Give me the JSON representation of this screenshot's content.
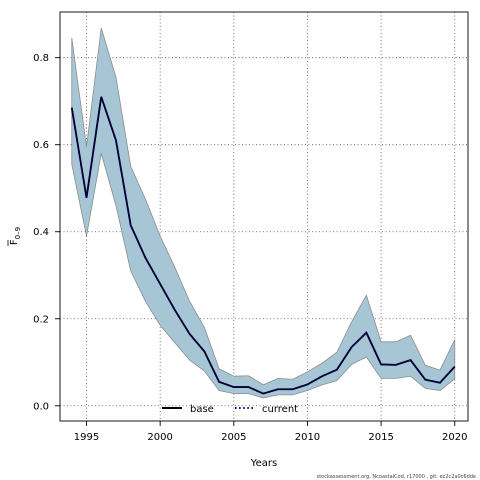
{
  "chart_data": {
    "type": "line",
    "xlabel": "Years",
    "ylabel_main": "F",
    "ylabel_sub": "0–9",
    "xlim": [
      1993.2,
      2020.9
    ],
    "ylim": [
      -0.035,
      0.905
    ],
    "xticks": [
      1995,
      2000,
      2005,
      2010,
      2015,
      2020
    ],
    "yticks": [
      0.0,
      0.2,
      0.4,
      0.6,
      0.8
    ],
    "grid": true,
    "legend_position": "bottom-center",
    "years": [
      1994,
      1995,
      1996,
      1997,
      1998,
      1999,
      2000,
      2001,
      2002,
      2003,
      2004,
      2005,
      2006,
      2007,
      2008,
      2009,
      2010,
      2011,
      2012,
      2013,
      2014,
      2015,
      2016,
      2017,
      2018,
      2019,
      2020
    ],
    "band": {
      "color": "#a6c6d6",
      "upper": [
        0.845,
        0.595,
        0.868,
        0.755,
        0.55,
        0.475,
        0.39,
        0.318,
        0.24,
        0.18,
        0.085,
        0.068,
        0.069,
        0.048,
        0.063,
        0.061,
        0.078,
        0.098,
        0.123,
        0.193,
        0.254,
        0.147,
        0.147,
        0.162,
        0.093,
        0.082,
        0.152
      ],
      "lower": [
        0.555,
        0.39,
        0.58,
        0.46,
        0.31,
        0.24,
        0.185,
        0.145,
        0.105,
        0.08,
        0.035,
        0.028,
        0.028,
        0.018,
        0.025,
        0.025,
        0.035,
        0.048,
        0.058,
        0.095,
        0.112,
        0.063,
        0.063,
        0.068,
        0.04,
        0.035,
        0.062
      ]
    },
    "series": [
      {
        "name": "base",
        "style": "solid",
        "color": "#000000",
        "values": [
          0.685,
          0.478,
          0.71,
          0.61,
          0.415,
          0.34,
          0.28,
          0.22,
          0.165,
          0.125,
          0.055,
          0.043,
          0.043,
          0.028,
          0.038,
          0.038,
          0.049,
          0.068,
          0.083,
          0.135,
          0.168,
          0.095,
          0.094,
          0.105,
          0.06,
          0.053,
          0.09
        ]
      },
      {
        "name": "current",
        "style": "dotted",
        "color": "#00008b",
        "values": [
          0.685,
          0.478,
          0.71,
          0.61,
          0.415,
          0.34,
          0.28,
          0.22,
          0.165,
          0.125,
          0.055,
          0.043,
          0.043,
          0.028,
          0.038,
          0.038,
          0.049,
          0.068,
          0.083,
          0.135,
          0.168,
          0.095,
          0.094,
          0.105,
          0.06,
          0.053,
          0.09
        ]
      }
    ],
    "footer_text": "stockassessment.org, NcoastalCod, r17000 , git: ec2c2a0c6dde"
  }
}
